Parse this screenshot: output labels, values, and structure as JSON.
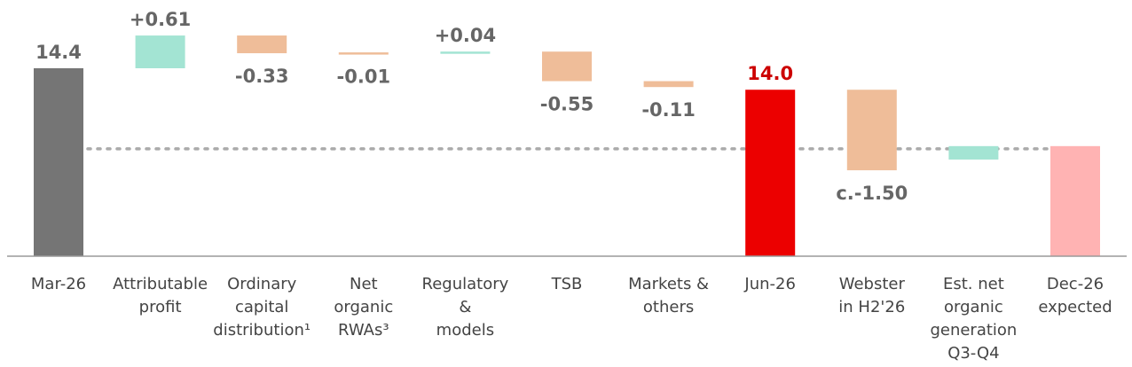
{
  "colors": {
    "start": "#757575",
    "increase": "#a3e4d3",
    "decrease": "#efbd99",
    "highlight": "#ec0000",
    "projected": "#ffb3b3",
    "label": "#666666",
    "highlight_label": "#cc0000",
    "category_text": "#444444",
    "axis": "#9a9a9a",
    "reference_line": "#aaaaaa"
  },
  "chart_data": {
    "type": "waterfall",
    "title": "",
    "xlabel": "",
    "ylabel": "",
    "ylim": [
      10.9,
      14.9
    ],
    "grid": false,
    "legend": "none",
    "reference_line": {
      "style": "dotted",
      "y": 12.9
    },
    "categories": [
      {
        "lines": [
          "Mar-26"
        ]
      },
      {
        "lines": [
          "Attributable",
          "profit"
        ]
      },
      {
        "lines": [
          "Ordinary",
          "capital",
          "distribution¹"
        ]
      },
      {
        "lines": [
          "Net",
          "organic",
          "RWAs³"
        ]
      },
      {
        "lines": [
          "Regulatory",
          "&",
          "models"
        ]
      },
      {
        "lines": [
          "TSB"
        ]
      },
      {
        "lines": [
          "Markets &",
          "others"
        ]
      },
      {
        "lines": [
          "Jun-26"
        ]
      },
      {
        "lines": [
          "Webster",
          "in H2'26"
        ]
      },
      {
        "lines": [
          "Est. net",
          "organic",
          "generation",
          "Q3-Q4"
        ]
      },
      {
        "lines": [
          "Dec-26",
          "expected"
        ]
      }
    ],
    "bars": [
      {
        "kind": "total",
        "from": 10.9,
        "to": 14.4,
        "label": "14.4",
        "color_key": "start"
      },
      {
        "kind": "delta",
        "from": 14.4,
        "to": 15.01,
        "label": "+0.61",
        "color_key": "increase"
      },
      {
        "kind": "delta",
        "from": 15.01,
        "to": 14.68,
        "label": "-0.33",
        "color_key": "decrease"
      },
      {
        "kind": "delta",
        "from": 14.68,
        "to": 14.67,
        "label": "-0.01",
        "color_key": "decrease"
      },
      {
        "kind": "delta",
        "from": 14.67,
        "to": 14.71,
        "label": "+0.04",
        "color_key": "increase"
      },
      {
        "kind": "delta",
        "from": 14.71,
        "to": 14.16,
        "label": "-0.55",
        "color_key": "decrease"
      },
      {
        "kind": "delta",
        "from": 14.16,
        "to": 14.05,
        "label": "-0.11",
        "color_key": "decrease"
      },
      {
        "kind": "total",
        "from": 10.9,
        "to": 14.0,
        "label": "14.0",
        "color_key": "highlight"
      },
      {
        "kind": "delta",
        "from": 14.0,
        "to": 12.5,
        "label": "c.-1.50",
        "color_key": "decrease"
      },
      {
        "kind": "delta",
        "from": 12.7,
        "to": 12.95,
        "label": "",
        "color_key": "increase"
      },
      {
        "kind": "total",
        "from": 10.9,
        "to": 12.95,
        "label": "",
        "color_key": "projected"
      }
    ]
  }
}
